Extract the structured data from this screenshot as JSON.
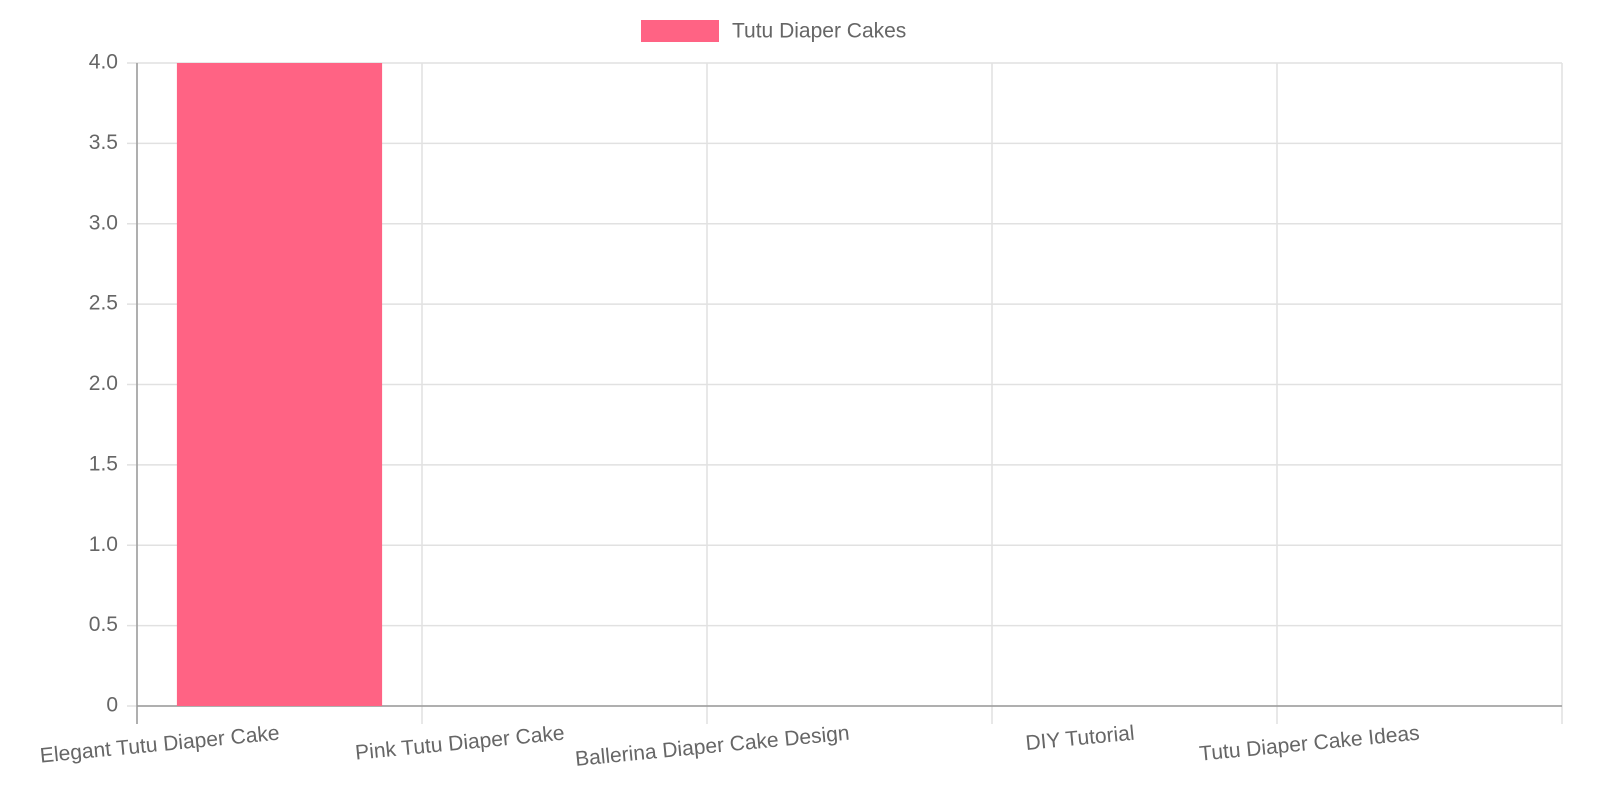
{
  "chart_data": {
    "type": "bar",
    "categories": [
      "Elegant Tutu Diaper Cake",
      "Pink Tutu Diaper Cake",
      "Ballerina Diaper Cake Design",
      "DIY Tutorial",
      "Tutu Diaper Cake Ideas"
    ],
    "series": [
      {
        "name": "Tutu Diaper Cakes",
        "color": "#ff6384",
        "values": [
          4,
          0,
          0,
          0,
          0
        ]
      }
    ],
    "ylim": [
      0,
      4
    ],
    "yticks": [
      0,
      0.5,
      {
        "value": 1,
        "label": "1.0"
      },
      1.5,
      {
        "value": 2,
        "label": "2.0"
      },
      2.5,
      {
        "value": 3,
        "label": "3.0"
      },
      3.5,
      {
        "value": 4,
        "label": "4.0"
      }
    ],
    "grid": true,
    "legend": "top"
  }
}
